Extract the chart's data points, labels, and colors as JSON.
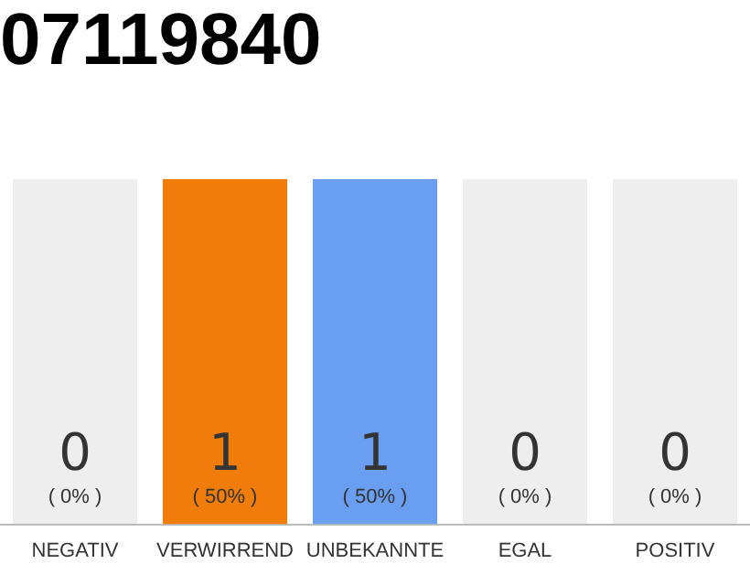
{
  "chart_data": {
    "type": "bar",
    "title": "07119840",
    "categories": [
      "NEGATIV",
      "VERWIRREND",
      "UNBEKANNTE",
      "EGAL",
      "POSITIV"
    ],
    "values": [
      0,
      1,
      1,
      0,
      0
    ],
    "colors": [
      "#f07d0a",
      "#f07d0a",
      "#6a9ef0",
      "#6a9ef0",
      "#6a9ef0"
    ],
    "data_labels": true,
    "annotations": [
      "( 0% )",
      "( 50% )",
      "( 50% )",
      "( 0% )",
      "( 0% )"
    ],
    "grid": false,
    "legend": false
  }
}
